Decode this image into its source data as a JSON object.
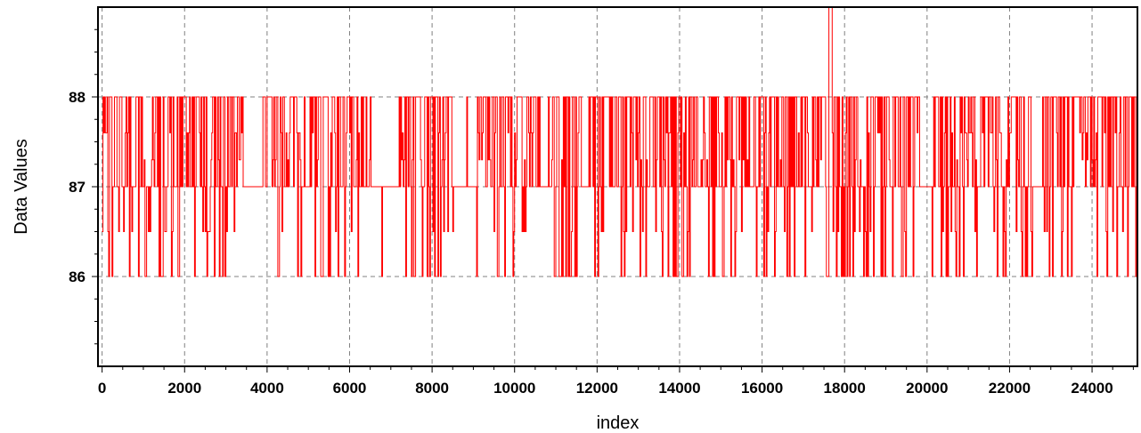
{
  "chart_data": {
    "type": "line",
    "title": "",
    "xlabel": "index",
    "ylabel": "Data Values",
    "xlim": [
      -100,
      25100
    ],
    "ylim": [
      85.0,
      89.0
    ],
    "x_ticks": [
      0,
      2000,
      4000,
      6000,
      8000,
      10000,
      12000,
      14000,
      16000,
      18000,
      20000,
      22000,
      24000
    ],
    "x_tick_labels": [
      "0",
      "2000",
      "4000",
      "6000",
      "8000",
      "10000",
      "12000",
      "14000",
      "16000",
      "18000",
      "20000",
      "22000",
      "24000"
    ],
    "y_ticks": [
      86,
      87,
      88
    ],
    "y_tick_labels": [
      "86",
      "87",
      "88"
    ],
    "grid": true,
    "series": [
      {
        "color": "#ff0000",
        "step": 20,
        "start_x": 0,
        "spike": {
          "x": 17650,
          "y": 89.0
        },
        "note_values": "integer steps between 86 and 88 around a baseline of 87",
        "dense_segments": [
          [
            0,
            1700
          ],
          [
            1800,
            3400
          ],
          [
            3900,
            4900
          ],
          [
            5000,
            6500
          ],
          [
            7200,
            8500
          ],
          [
            9100,
            10600
          ],
          [
            10900,
            11600
          ],
          [
            11800,
            13200
          ],
          [
            13300,
            14400
          ],
          [
            14500,
            15700
          ],
          [
            15800,
            17100
          ],
          [
            17200,
            18400
          ],
          [
            18500,
            19800
          ],
          [
            20100,
            21200
          ],
          [
            21300,
            22600
          ],
          [
            22800,
            25100
          ]
        ]
      }
    ]
  }
}
